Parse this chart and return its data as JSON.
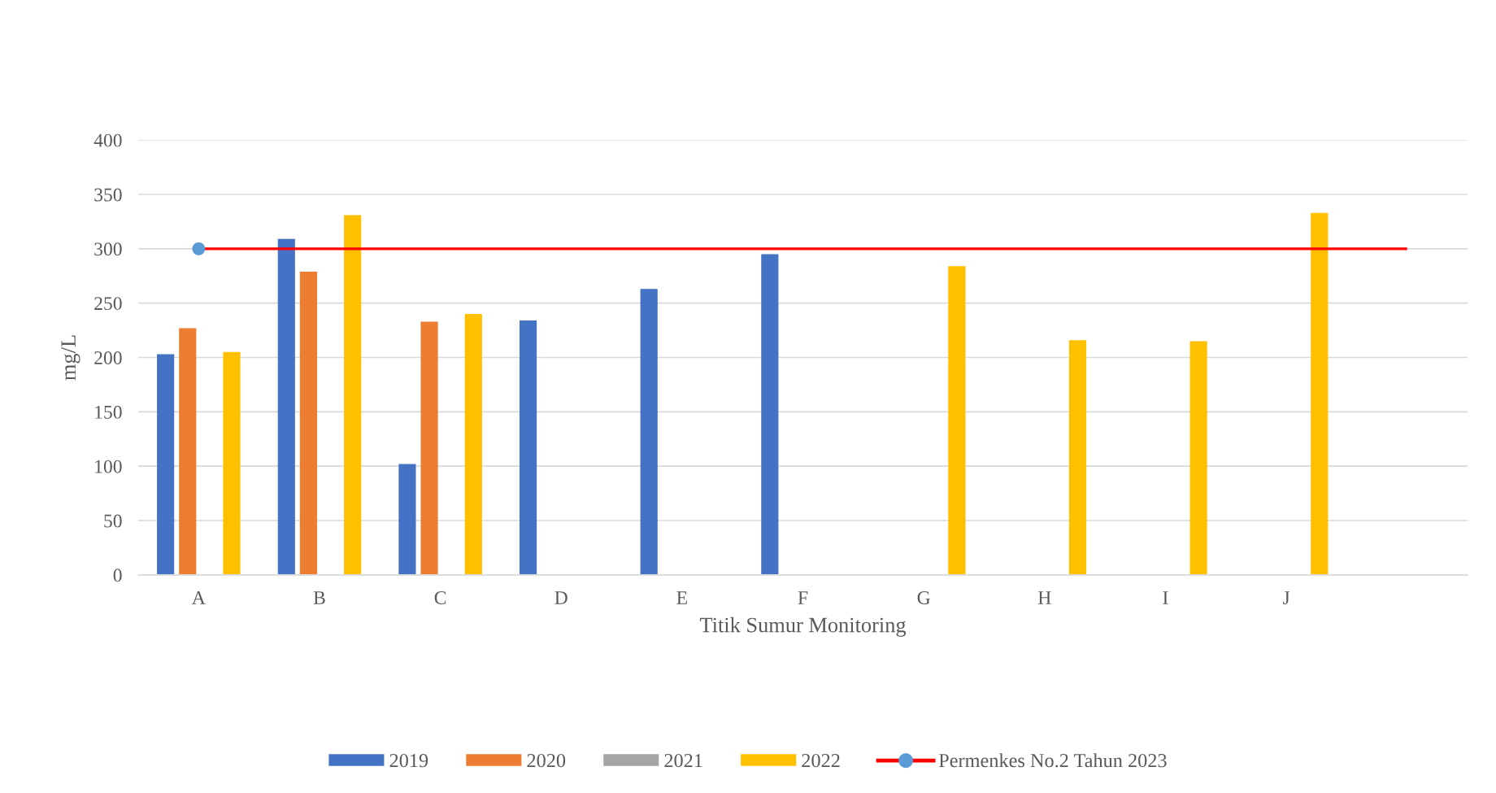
{
  "chart_data": {
    "type": "bar",
    "xlabel": "Titik Sumur Monitoring",
    "ylabel": "mg/L",
    "categories": [
      "A",
      "B",
      "C",
      "D",
      "E",
      "F",
      "G",
      "H",
      "I",
      "J",
      null
    ],
    "series": [
      {
        "name": "2019",
        "color": "#4472c4",
        "values": [
          203,
          309,
          102,
          234,
          263,
          295,
          null,
          null,
          null,
          null,
          null
        ]
      },
      {
        "name": "2020",
        "color": "#ed7d31",
        "values": [
          227,
          279,
          233,
          null,
          null,
          null,
          null,
          null,
          null,
          null,
          null
        ]
      },
      {
        "name": "2021",
        "color": "#a5a5a5",
        "values": [
          null,
          null,
          null,
          null,
          null,
          null,
          null,
          null,
          null,
          null,
          null
        ]
      },
      {
        "name": "2022",
        "color": "#ffc000",
        "values": [
          205,
          331,
          240,
          null,
          null,
          null,
          284,
          216,
          215,
          333,
          null
        ]
      },
      {
        "type": "line",
        "name": "Permenkes No.2 Tahun 2023",
        "color": "#ff0000",
        "marker": "none",
        "values": [
          300,
          300,
          300,
          300,
          300,
          300,
          300,
          300,
          300,
          300,
          300
        ]
      },
      {
        "type": "scatter",
        "color": "#5b9bd5",
        "marker": "circle",
        "values": [
          300,
          null,
          null,
          null,
          null,
          null,
          null,
          null,
          null,
          null,
          null
        ]
      }
    ],
    "ylim": [
      0,
      400
    ],
    "yticks": [
      0,
      50,
      100,
      150,
      200,
      250,
      300,
      350,
      400
    ],
    "grid": "y",
    "legend": "bottom"
  }
}
